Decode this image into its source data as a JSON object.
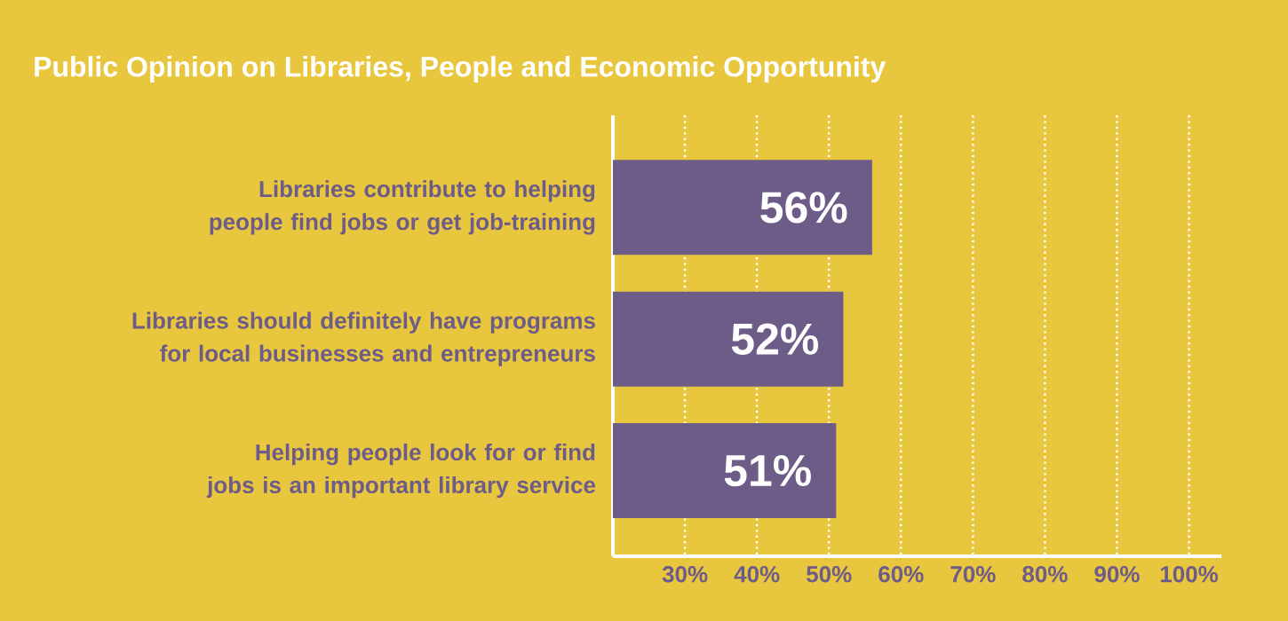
{
  "chart_data": {
    "type": "bar",
    "orientation": "horizontal",
    "title": "Public Opinion on Libraries, People and Economic Opportunity",
    "categories": [
      "Libraries contribute to helping people find jobs or get job-training",
      "Libraries should definitely have programs for local businesses and entrepreneurs",
      "Helping people look for or find jobs is an important library service"
    ],
    "values": [
      56,
      52,
      51
    ],
    "color": "#6d5c87",
    "value_labels": [
      "56%",
      "52%",
      "51%"
    ],
    "xlim": [
      20,
      104.5
    ],
    "xticks": [
      {
        "value": 30,
        "label": "30%"
      },
      {
        "value": 40,
        "label": "40%"
      },
      {
        "value": 50,
        "label": "50%"
      },
      {
        "value": 60,
        "label": "60%"
      },
      {
        "value": 70,
        "label": "70%"
      },
      {
        "value": 80,
        "label": "80%"
      },
      {
        "value": 90,
        "label": "90%"
      },
      {
        "value": 100,
        "label": "100%"
      }
    ],
    "grid": "x"
  }
}
